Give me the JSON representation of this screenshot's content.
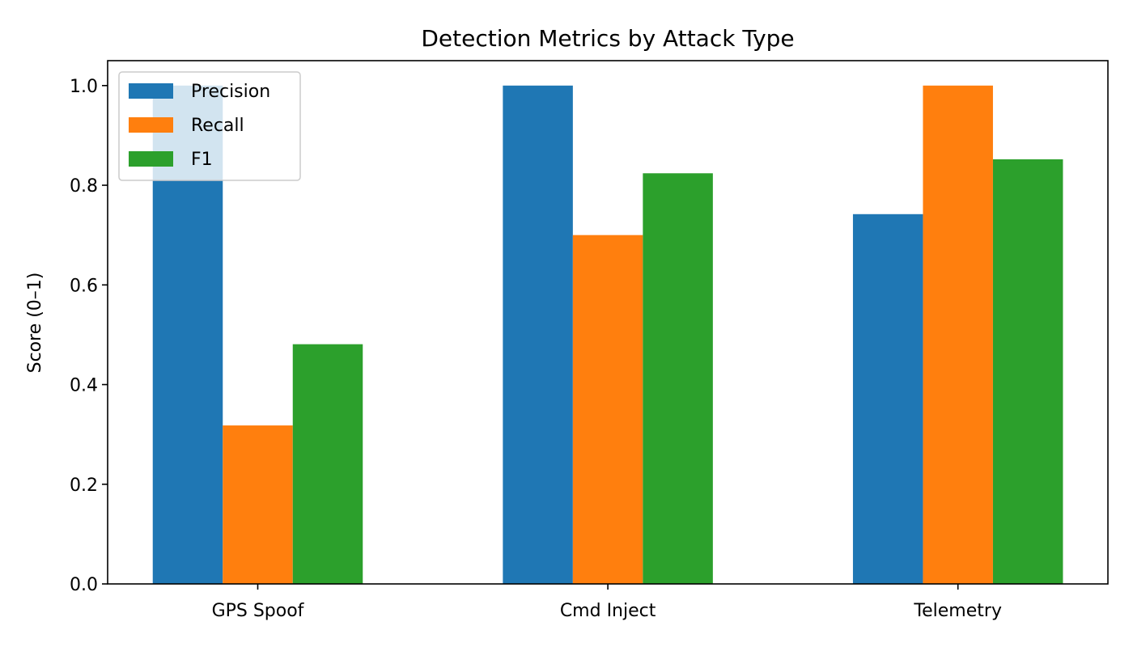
{
  "chart_data": {
    "type": "bar",
    "title": "Detection Metrics by Attack Type",
    "xlabel": "",
    "ylabel": "Score (0–1)",
    "categories": [
      "GPS Spoof",
      "Cmd Inject",
      "Telemetry"
    ],
    "series": [
      {
        "name": "Precision",
        "color": "#1f77b4",
        "values": [
          1.0,
          1.0,
          0.742
        ]
      },
      {
        "name": "Recall",
        "color": "#ff7f0e",
        "values": [
          0.318,
          0.7,
          1.0
        ]
      },
      {
        "name": "F1",
        "color": "#2ca02c",
        "values": [
          0.481,
          0.824,
          0.852
        ]
      }
    ],
    "ylim": [
      0,
      1.05
    ],
    "yticks": [
      0.0,
      0.2,
      0.4,
      0.6,
      0.8,
      1.0
    ],
    "ytick_labels": [
      "0.0",
      "0.2",
      "0.4",
      "0.6",
      "0.8",
      "1.0"
    ],
    "grid": false,
    "legend": "top-left"
  }
}
